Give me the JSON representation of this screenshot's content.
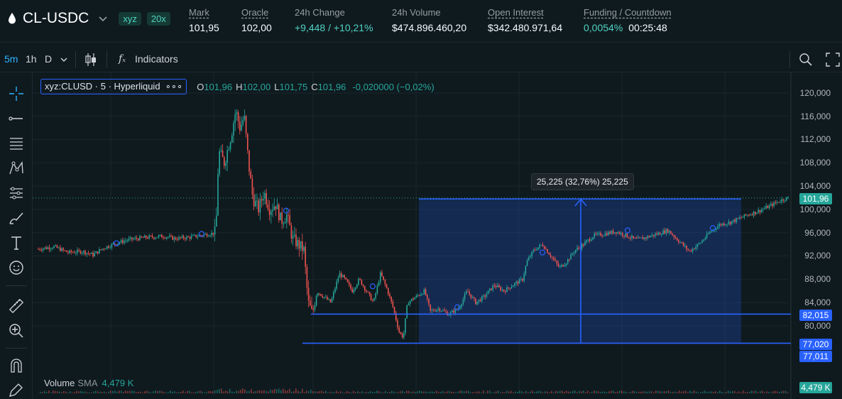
{
  "market": {
    "pair": "CL-USDC",
    "badge_dex": "xyz",
    "badge_leverage": "20x",
    "stats": [
      {
        "label": "Mark",
        "value": "101,95",
        "underline": true
      },
      {
        "label": "Oracle",
        "value": "102,00",
        "underline": true
      },
      {
        "label": "24h Change",
        "value": "+9,448 / +10,21%",
        "underline": false,
        "positive": true
      },
      {
        "label": "24h Volume",
        "value": "$474.896.460,20",
        "underline": false
      },
      {
        "label": "Open Interest",
        "value": "$342.480.971,64",
        "underline": true
      },
      {
        "label": "Funding / Countdown",
        "value": "0,0054%",
        "value2": "00:25:48",
        "underline": true,
        "positive": true
      }
    ]
  },
  "toolbar": {
    "intervals": [
      "5m",
      "1h",
      "D"
    ],
    "active_interval": "5m",
    "indicators_label": "Indicators"
  },
  "legend": {
    "symbol": "xyz:CLUSD · 5 · Hyperliquid",
    "more": "∘∘∘",
    "o_key": "O",
    "o_val": "101,96",
    "h_key": "H",
    "h_val": "102,00",
    "l_key": "L",
    "l_val": "101,75",
    "c_key": "C",
    "c_val": "101,96",
    "change": "-0,020000 (−0,02%)"
  },
  "volume": {
    "name": "Volume",
    "sma": "SMA",
    "value": "4,479 K"
  },
  "price_axis": [
    "120,000",
    "116,000",
    "112,000",
    "108,000",
    "104,000",
    "100,000",
    "96,000",
    "92,000",
    "88,000",
    "84,000",
    "80,000"
  ],
  "price_tags": {
    "last": "101,96",
    "level_high": "82,015",
    "level_low": "77,020",
    "level_low2": "77,011",
    "volume": "4,479 K"
  },
  "measure": {
    "label": "25,225 (32,76%) 25,225"
  },
  "colors": {
    "up": "#26a69a",
    "down": "#ef5350",
    "accent": "#2962ff",
    "positive": "#50d2c1"
  }
}
